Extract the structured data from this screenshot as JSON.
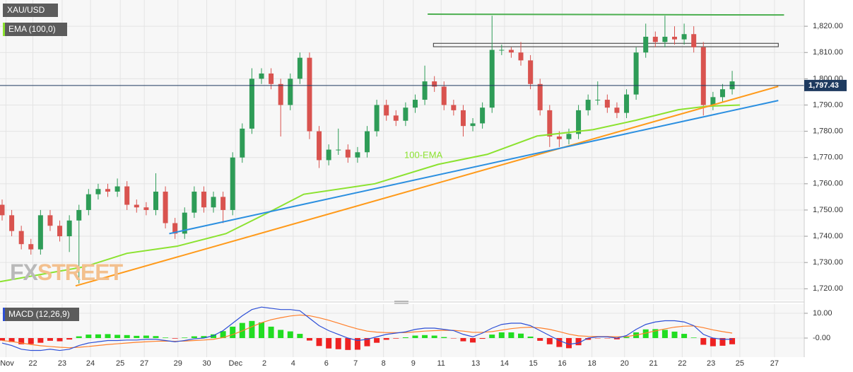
{
  "chart_data": [
    {
      "type": "candlestick",
      "title": "XAU/USD",
      "indicator_label": "EMA (100,0)",
      "watermark": [
        "FX",
        "STREET"
      ],
      "up_color": "#2e9c57",
      "down_color": "#d9534f",
      "open": [
        1752,
        1748,
        1742,
        1737,
        1735,
        1748,
        1744,
        1740,
        1746,
        1750,
        1756,
        1758,
        1757,
        1759,
        1752,
        1751,
        1750,
        1757,
        1745,
        1741,
        1749,
        1757,
        1751,
        1755,
        1750,
        1770,
        1781,
        1800,
        1802,
        1798,
        1790,
        1800,
        1808,
        1780,
        1769,
        1773,
        1773,
        1770,
        1772,
        1780,
        1790,
        1786,
        1784,
        1789,
        1792,
        1799,
        1797,
        1790,
        1788,
        1782,
        1783,
        1789,
        1811,
        1811,
        1810,
        1807,
        1798,
        1788,
        1778,
        1777,
        1779,
        1788,
        1792,
        1792,
        1789,
        1787,
        1794,
        1810,
        1816,
        1814,
        1816,
        1815,
        1817,
        1812,
        1790,
        1793,
        1796
      ],
      "high": [
        1754,
        1750,
        1744,
        1739,
        1750,
        1750,
        1746,
        1748,
        1752,
        1758,
        1760,
        1760,
        1762,
        1761,
        1754,
        1753,
        1764,
        1759,
        1747,
        1751,
        1759,
        1759,
        1757,
        1757,
        1772,
        1783,
        1804,
        1804,
        1804,
        1800,
        1802,
        1810,
        1810,
        1782,
        1775,
        1781,
        1775,
        1774,
        1782,
        1792,
        1792,
        1788,
        1791,
        1794,
        1805,
        1801,
        1799,
        1792,
        1790,
        1785,
        1791,
        1824,
        1813,
        1812,
        1814,
        1809,
        1800,
        1790,
        1780,
        1781,
        1790,
        1794,
        1799,
        1794,
        1791,
        1796,
        1812,
        1821,
        1818,
        1824,
        1820,
        1821,
        1820,
        1814,
        1795,
        1798,
        1803
      ],
      "low": [
        1746,
        1740,
        1735,
        1733,
        1733,
        1742,
        1738,
        1734,
        1722,
        1748,
        1754,
        1755,
        1755,
        1750,
        1749,
        1748,
        1748,
        1743,
        1739,
        1739,
        1747,
        1749,
        1749,
        1745,
        1748,
        1768,
        1779,
        1798,
        1796,
        1778,
        1788,
        1798,
        1777,
        1766,
        1767,
        1771,
        1768,
        1768,
        1770,
        1778,
        1784,
        1782,
        1782,
        1787,
        1790,
        1795,
        1788,
        1786,
        1778,
        1780,
        1781,
        1787,
        1809,
        1808,
        1805,
        1796,
        1786,
        1774,
        1774,
        1775,
        1777,
        1786,
        1790,
        1787,
        1785,
        1785,
        1792,
        1808,
        1812,
        1812,
        1813,
        1813,
        1810,
        1786,
        1788,
        1791,
        1794
      ],
      "close": [
        1748,
        1742,
        1737,
        1735,
        1748,
        1744,
        1740,
        1746,
        1750,
        1756,
        1758,
        1757,
        1759,
        1752,
        1751,
        1750,
        1757,
        1745,
        1741,
        1749,
        1757,
        1751,
        1755,
        1750,
        1770,
        1781,
        1800,
        1802,
        1798,
        1790,
        1800,
        1808,
        1780,
        1769,
        1773,
        1773,
        1770,
        1772,
        1780,
        1790,
        1786,
        1784,
        1789,
        1792,
        1799,
        1797,
        1790,
        1788,
        1782,
        1783,
        1789,
        1811,
        1811,
        1810,
        1807,
        1798,
        1788,
        1778,
        1777,
        1779,
        1788,
        1792,
        1792,
        1789,
        1787,
        1794,
        1810,
        1816,
        1814,
        1816,
        1815,
        1817,
        1812,
        1790,
        1793,
        1796,
        1799
      ],
      "lines": [
        {
          "label": "100-EMA",
          "color": "#8be22f",
          "x": [
            -0.22,
            8.6,
            13,
            18.2,
            23.3,
            27.7,
            31.4,
            38.8,
            45.4,
            50.5,
            55.7,
            61.5,
            66,
            70.4,
            73.3,
            76.8
          ],
          "values": [
            1722.7,
            1728.4,
            1733.5,
            1736.2,
            1741,
            1749,
            1756,
            1760,
            1767.4,
            1771.2,
            1778.2,
            1780.6,
            1784.2,
            1788.2,
            1789.5,
            1790
          ]
        },
        {
          "color": "#ff9a1a",
          "x": [
            7.65,
            80.8
          ],
          "values": [
            1721.1,
            1797.1
          ]
        },
        {
          "color": "#2b8fe0",
          "x": [
            17.4,
            80.8
          ],
          "values": [
            1741,
            1791.7
          ]
        },
        {
          "color": "#4caf50",
          "x": [
            44.3,
            81.4
          ],
          "values": [
            1824.6,
            1824.3
          ]
        }
      ],
      "zones": [
        {
          "x": [
            44.9,
            80.8
          ],
          "values": [
            1812.2,
            1813.5
          ]
        }
      ],
      "last_price": {
        "value": 1797.43,
        "label": "1,797.43"
      },
      "xlim": [
        -0.22,
        83.5
      ],
      "ylim": [
        1715.5,
        1830
      ],
      "yticks": [
        {
          "value": 1720,
          "label": "1,720.00"
        },
        {
          "value": 1730,
          "label": "1,730.00"
        },
        {
          "value": 1740,
          "label": "1,740.00"
        },
        {
          "value": 1750,
          "label": "1,750.00"
        },
        {
          "value": 1760,
          "label": "1,760.00"
        },
        {
          "value": 1770,
          "label": "1,770.00"
        },
        {
          "value": 1780,
          "label": "1,780.00"
        },
        {
          "value": 1790,
          "label": "1,790.00"
        },
        {
          "value": 1800,
          "label": "1,800.00"
        },
        {
          "value": 1810,
          "label": "1,810.00"
        },
        {
          "value": 1820,
          "label": "1,820.00"
        }
      ],
      "grid": true
    },
    {
      "type": "macd",
      "title": "MACD (12,26,9)",
      "macd": {
        "color": "#2d4fd6",
        "values": [
          -2,
          -3,
          -4.5,
          -5,
          -5,
          -4.5,
          -5,
          -4.5,
          -3,
          -2,
          -1.5,
          -1,
          -1,
          -0.8,
          -0.8,
          -0.5,
          -0.5,
          -1,
          -1.5,
          -1,
          -0.3,
          0,
          1,
          3,
          6,
          9,
          11.5,
          12.5,
          12,
          11.5,
          11.5,
          11,
          8,
          5,
          3,
          1.5,
          0,
          -1,
          -0.5,
          0.5,
          1.5,
          2,
          2.5,
          3.5,
          4,
          4,
          3.5,
          3,
          1.5,
          0.5,
          2,
          4,
          5.5,
          6,
          6,
          5,
          3,
          1,
          -1,
          -2.5,
          -2,
          0,
          0.5,
          0.5,
          0,
          1,
          3.5,
          5.5,
          6.5,
          7,
          7,
          6.5,
          5,
          1.5,
          0,
          -0.5,
          -0.5
        ]
      },
      "signal": {
        "color": "#ff7f2a",
        "values": [
          -1,
          -1.4,
          -2,
          -2.6,
          -3.1,
          -3.4,
          -3.7,
          -3.9,
          -3.7,
          -3.4,
          -3,
          -2.6,
          -2.3,
          -2,
          -1.7,
          -1.5,
          -1.3,
          -1.2,
          -1.3,
          -1.2,
          -1,
          -0.8,
          -0.5,
          0.2,
          1.4,
          2.9,
          4.6,
          6.2,
          7.4,
          8.2,
          8.9,
          9.3,
          9,
          8.2,
          7.2,
          6,
          4.8,
          3.7,
          2.8,
          2.4,
          2.2,
          2.2,
          2.2,
          2.5,
          2.8,
          3,
          3.1,
          3.1,
          2.8,
          2.3,
          2.3,
          2.6,
          3.2,
          3.8,
          4.2,
          4.4,
          4.1,
          3.5,
          2.6,
          1.6,
          0.9,
          0.7,
          0.6,
          0.6,
          0.5,
          0.6,
          1.2,
          2,
          2.9,
          3.7,
          4.4,
          4.8,
          4.9,
          4.2,
          3.3,
          2.6,
          2
        ]
      },
      "histogram": {
        "up_color": "#22dd22",
        "down_color": "#ee2222",
        "values": [
          -1,
          -1.6,
          -2.5,
          -2.4,
          -1.9,
          -1.1,
          -1.3,
          -0.6,
          0.7,
          1.4,
          1.5,
          1.6,
          1.3,
          1.2,
          0.9,
          1,
          0.8,
          0.2,
          -0.2,
          0.2,
          0.7,
          0.8,
          1.5,
          2.8,
          4.6,
          6.1,
          6.9,
          6.3,
          4.6,
          3.3,
          2.7,
          1.7,
          -1,
          -3.2,
          -4.2,
          -4.5,
          -4.8,
          -4.7,
          -3.3,
          -1.9,
          -0.7,
          -0.2,
          0.3,
          1,
          1.2,
          1,
          0.4,
          -0.1,
          -1.3,
          -1.8,
          -0.3,
          1.4,
          2.3,
          2.3,
          1.8,
          0.6,
          -1.1,
          -2.5,
          -3.6,
          -4.1,
          -2.9,
          -0.7,
          -0.1,
          -0.1,
          -0.5,
          0.4,
          2.3,
          3.5,
          3.6,
          3.3,
          2.6,
          1.7,
          0.2,
          -2.7,
          -3.3,
          -3.1,
          -2.5
        ]
      },
      "xlim": [
        -0.22,
        83.5
      ],
      "ylim": [
        -7.7,
        13.7
      ],
      "yticks": [
        {
          "value": 10,
          "label": "10.00"
        },
        {
          "value": 0,
          "label": "-0.00"
        }
      ],
      "xticks": [
        {
          "value": 0.4,
          "label": "Nov"
        },
        {
          "value": 3.2,
          "label": "22"
        },
        {
          "value": 6.25,
          "label": "23"
        },
        {
          "value": 9.2,
          "label": "24"
        },
        {
          "value": 12.3,
          "label": "25"
        },
        {
          "value": 14.8,
          "label": "27"
        },
        {
          "value": 18.3,
          "label": "29"
        },
        {
          "value": 21.3,
          "label": "30"
        },
        {
          "value": 24.3,
          "label": "Dec"
        },
        {
          "value": 27.3,
          "label": "2"
        },
        {
          "value": 30.3,
          "label": "4"
        },
        {
          "value": 33.75,
          "label": "6"
        },
        {
          "value": 36.8,
          "label": "7"
        },
        {
          "value": 39.7,
          "label": "8"
        },
        {
          "value": 42.8,
          "label": "9"
        },
        {
          "value": 45.7,
          "label": "11"
        },
        {
          "value": 49.3,
          "label": "13"
        },
        {
          "value": 52.3,
          "label": "14"
        },
        {
          "value": 55.3,
          "label": "15"
        },
        {
          "value": 58.3,
          "label": "16"
        },
        {
          "value": 61.4,
          "label": "18"
        },
        {
          "value": 64.8,
          "label": "20"
        },
        {
          "value": 67.8,
          "label": "21"
        },
        {
          "value": 70.8,
          "label": "22"
        },
        {
          "value": 73.8,
          "label": "23"
        },
        {
          "value": 76.8,
          "label": "25"
        },
        {
          "value": 80.4,
          "label": "27"
        }
      ],
      "grid": true
    }
  ]
}
